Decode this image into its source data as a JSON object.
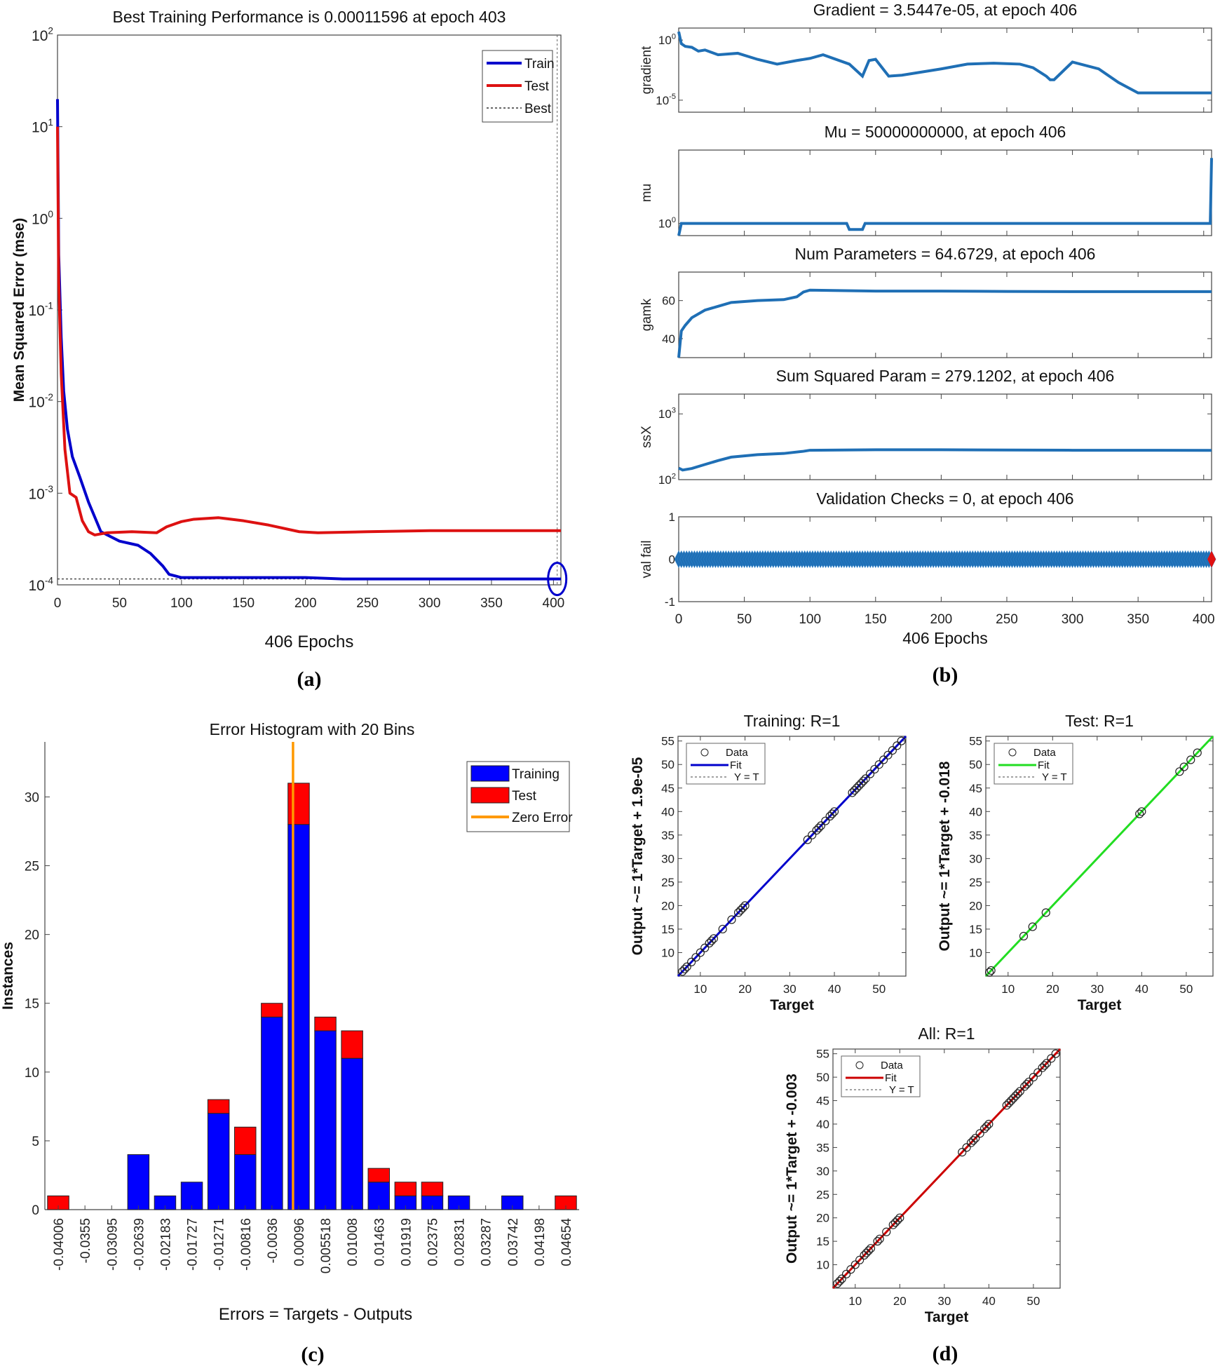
{
  "chart_data": [
    {
      "id": "a",
      "type": "line",
      "caption": "(a)",
      "title": "Best Training Performance is 0.00011596 at epoch 403",
      "xlabel": "406 Epochs",
      "ylabel": "Mean Squared Error  (mse)",
      "yscale": "log",
      "xlim": [
        0,
        406
      ],
      "ylim": [
        0.0001,
        100
      ],
      "xticks": [
        "0",
        "50",
        "100",
        "150",
        "200",
        "250",
        "300",
        "350",
        "400"
      ],
      "yticks": [
        {
          "base": "10",
          "exp": "2"
        },
        {
          "base": "10",
          "exp": "1"
        },
        {
          "base": "10",
          "exp": "0"
        },
        {
          "base": "10",
          "exp": "-1"
        },
        {
          "base": "10",
          "exp": "-2"
        },
        {
          "base": "10",
          "exp": "-3"
        },
        {
          "base": "10",
          "exp": "-4"
        }
      ],
      "legend": [
        "Train",
        "Test",
        "Best"
      ],
      "series": [
        {
          "name": "Train",
          "color": "#0000cc",
          "x": [
            0,
            1,
            3,
            5,
            8,
            12,
            18,
            25,
            35,
            50,
            65,
            75,
            85,
            90,
            95,
            100,
            130,
            200,
            230,
            406
          ],
          "y": [
            20,
            0.4,
            0.05,
            0.013,
            0.005,
            0.0025,
            0.0015,
            0.0008,
            0.00038,
            0.0003,
            0.00027,
            0.00022,
            0.00016,
            0.00013,
            0.000125,
            0.00012,
            0.00012,
            0.00012,
            0.000116,
            0.000116
          ]
        },
        {
          "name": "Test",
          "color": "#dd1111",
          "x": [
            0,
            1,
            3,
            6,
            10,
            15,
            20,
            25,
            30,
            40,
            60,
            80,
            88,
            100,
            110,
            130,
            135,
            150,
            170,
            195,
            210,
            250,
            300,
            406
          ],
          "y": [
            10,
            0.2,
            0.02,
            0.003,
            0.001,
            0.0009,
            0.0005,
            0.00038,
            0.00035,
            0.00037,
            0.00038,
            0.00037,
            0.00043,
            0.00049,
            0.00052,
            0.00054,
            0.00053,
            0.0005,
            0.00045,
            0.00038,
            0.00037,
            0.00038,
            0.00039,
            0.00039
          ]
        }
      ],
      "best_epoch": 403,
      "best_value": 0.00011596
    },
    {
      "id": "b",
      "type": "line",
      "caption": "(b)",
      "xlabel": "406 Epochs",
      "xticks": [
        "0",
        "50",
        "100",
        "150",
        "200",
        "250",
        "300",
        "350",
        "400"
      ],
      "xlim": [
        0,
        406
      ],
      "color": "#1f6fb5",
      "panels": [
        {
          "title": "Gradient = 3.5447e-05, at epoch 406",
          "ylabel": "gradient",
          "scale": "log",
          "ylim": [
            1e-06,
            10
          ],
          "yticks": [
            {
              "base": "10",
              "exp": "0",
              "v": 1
            },
            {
              "base": "10",
              "exp": "-5",
              "v": 1e-05
            }
          ],
          "x": [
            0,
            2,
            5,
            10,
            15,
            20,
            30,
            45,
            60,
            75,
            90,
            100,
            110,
            130,
            140,
            145,
            150,
            155,
            160,
            170,
            200,
            220,
            240,
            260,
            270,
            280,
            283,
            286,
            300,
            320,
            335,
            350,
            406
          ],
          "y": [
            5,
            0.5,
            0.3,
            0.25,
            0.12,
            0.15,
            0.06,
            0.08,
            0.025,
            0.01,
            0.02,
            0.03,
            0.06,
            0.01,
            0.001,
            0.02,
            0.025,
            0.005,
            0.001,
            0.0012,
            0.004,
            0.01,
            0.012,
            0.01,
            0.005,
            0.001,
            0.0005,
            0.0005,
            0.015,
            0.004,
            0.0003,
            4e-05,
            4e-05
          ]
        },
        {
          "title": "Mu = 50000000000, at epoch 406",
          "ylabel": "mu",
          "scale": "log",
          "ylim": [
            0.01,
            1000000000000.0
          ],
          "yticks": [
            {
              "base": "10",
              "exp": "0",
              "v": 1
            }
          ],
          "x": [
            0,
            2,
            128,
            130,
            140,
            142,
            270,
            272,
            405,
            406
          ],
          "y": [
            0.01,
            1,
            1,
            0.1,
            0.1,
            1,
            1,
            1,
            1,
            50000000000
          ]
        },
        {
          "title": "Num Parameters = 64.6729, at epoch 406",
          "ylabel": "gamk",
          "scale": "linear",
          "ylim": [
            30,
            75
          ],
          "yticks": [
            {
              "label": "60",
              "v": 60
            },
            {
              "label": "40",
              "v": 40
            }
          ],
          "x": [
            0,
            2,
            5,
            10,
            20,
            30,
            40,
            50,
            60,
            80,
            90,
            95,
            100,
            150,
            200,
            250,
            300,
            406
          ],
          "y": [
            30,
            44,
            47,
            51,
            55,
            57,
            59,
            59.5,
            60,
            60.5,
            62,
            64.5,
            65.5,
            65,
            65,
            64.8,
            64.7,
            64.7
          ]
        },
        {
          "title": "Sum Squared Param = 279.1202, at epoch 406",
          "ylabel": "ssX",
          "scale": "log",
          "ylim": [
            100,
            2000
          ],
          "yticks": [
            {
              "base": "10",
              "exp": "3",
              "v": 1000
            },
            {
              "base": "10",
              "exp": "2",
              "v": 100
            }
          ],
          "x": [
            0,
            3,
            10,
            20,
            30,
            40,
            50,
            60,
            80,
            95,
            100,
            150,
            200,
            250,
            300,
            406
          ],
          "y": [
            150,
            140,
            148,
            170,
            195,
            220,
            230,
            240,
            250,
            270,
            280,
            285,
            285,
            282,
            280,
            279
          ]
        },
        {
          "title": "Validation Checks = 0, at epoch 406",
          "ylabel": "val fail",
          "scale": "linear",
          "ylim": [
            -1,
            1
          ],
          "yticks": [
            {
              "label": "1",
              "v": 1
            },
            {
              "label": "0",
              "v": 0
            },
            {
              "label": "-1",
              "v": -1
            }
          ],
          "constant": 0,
          "points": 407
        }
      ]
    },
    {
      "id": "c",
      "type": "bar",
      "caption": "(c)",
      "title": "Error Histogram with 20 Bins",
      "xlabel": "Errors = Targets - Outputs",
      "ylabel": "Instances",
      "ylim": [
        0,
        34
      ],
      "yticks": [
        "0",
        "5",
        "10",
        "15",
        "20",
        "25",
        "30"
      ],
      "categories": [
        "-0.04006",
        "-0.0355",
        "-0.03095",
        "-0.02639",
        "-0.02183",
        "-0.01727",
        "-0.01271",
        "-0.00816",
        "-0.0036",
        "0.00096",
        "0.005518",
        "0.01008",
        "0.01463",
        "0.01919",
        "0.02375",
        "0.02831",
        "0.03287",
        "0.03742",
        "0.04198",
        "0.04654"
      ],
      "series": [
        {
          "name": "Training",
          "color": "#0000ff",
          "values": [
            0,
            0,
            0,
            4,
            1,
            2,
            7,
            4,
            14,
            28,
            13,
            11,
            2,
            1,
            1,
            1,
            0,
            1,
            0,
            0
          ]
        },
        {
          "name": "Test",
          "color": "#ff0000",
          "values": [
            1,
            0,
            0,
            0,
            0,
            0,
            1,
            2,
            1,
            3,
            1,
            2,
            1,
            1,
            1,
            0,
            0,
            0,
            0,
            1
          ]
        }
      ],
      "zero_error_label": "Zero Error",
      "zero_error_color": "#ff9900"
    },
    {
      "id": "d",
      "type": "scatter",
      "caption": "(d)",
      "panels": [
        {
          "title": "Training: R=1",
          "ylabel": "Output ~= 1*Target + 1.9e-05",
          "xlabel": "Target",
          "fit_color": "#0000cc",
          "legend": [
            "Data",
            "Fit",
            "Y = T"
          ],
          "xlim": [
            5,
            56
          ],
          "ylim": [
            5,
            56
          ],
          "xticks": [
            "10",
            "20",
            "30",
            "40",
            "50"
          ],
          "yticks": [
            "10",
            "15",
            "20",
            "25",
            "30",
            "35",
            "40",
            "45",
            "50",
            "55"
          ],
          "x": [
            6,
            6.5,
            7,
            8,
            9,
            10,
            11,
            12,
            12.5,
            13,
            15,
            17,
            18.5,
            19,
            19.5,
            20,
            34,
            35,
            36,
            36.5,
            37,
            38,
            39,
            39.5,
            40,
            44,
            44.5,
            45,
            45.5,
            46,
            46.5,
            47,
            48,
            49,
            50,
            51,
            52,
            53,
            54,
            55
          ]
        },
        {
          "title": "Test: R=1",
          "ylabel": "Output ~= 1*Target + -0.018",
          "xlabel": "Target",
          "fit_color": "#22dd22",
          "legend": [
            "Data",
            "Fit",
            "Y = T"
          ],
          "xlim": [
            5,
            56
          ],
          "ylim": [
            5,
            56
          ],
          "xticks": [
            "10",
            "20",
            "30",
            "40",
            "50"
          ],
          "yticks": [
            "10",
            "15",
            "20",
            "25",
            "30",
            "35",
            "40",
            "45",
            "50",
            "55"
          ],
          "x": [
            5.8,
            6.2,
            13.5,
            15.5,
            18.5,
            39.5,
            40,
            48.5,
            49.5,
            51,
            52.5
          ]
        },
        {
          "title": "All: R=1",
          "ylabel": "Output ~= 1*Target + -0.003",
          "xlabel": "Target",
          "fit_color": "#cc0000",
          "legend": [
            "Data",
            "Fit",
            "Y = T"
          ],
          "xlim": [
            5,
            56
          ],
          "ylim": [
            5,
            56
          ],
          "xticks": [
            "10",
            "20",
            "30",
            "40",
            "50"
          ],
          "yticks": [
            "10",
            "15",
            "20",
            "25",
            "30",
            "35",
            "40",
            "45",
            "50",
            "55"
          ],
          "x": [
            6,
            6.5,
            7,
            8,
            9,
            10,
            11,
            12,
            12.5,
            13,
            13.5,
            15,
            15.5,
            17,
            18.5,
            19,
            19.5,
            20,
            34,
            35,
            36,
            36.5,
            37,
            38,
            39,
            39.5,
            40,
            44,
            44.5,
            45,
            45.5,
            46,
            46.5,
            47,
            48,
            48.5,
            49,
            50,
            51,
            52,
            52.5,
            53,
            54,
            55
          ]
        }
      ]
    }
  ]
}
